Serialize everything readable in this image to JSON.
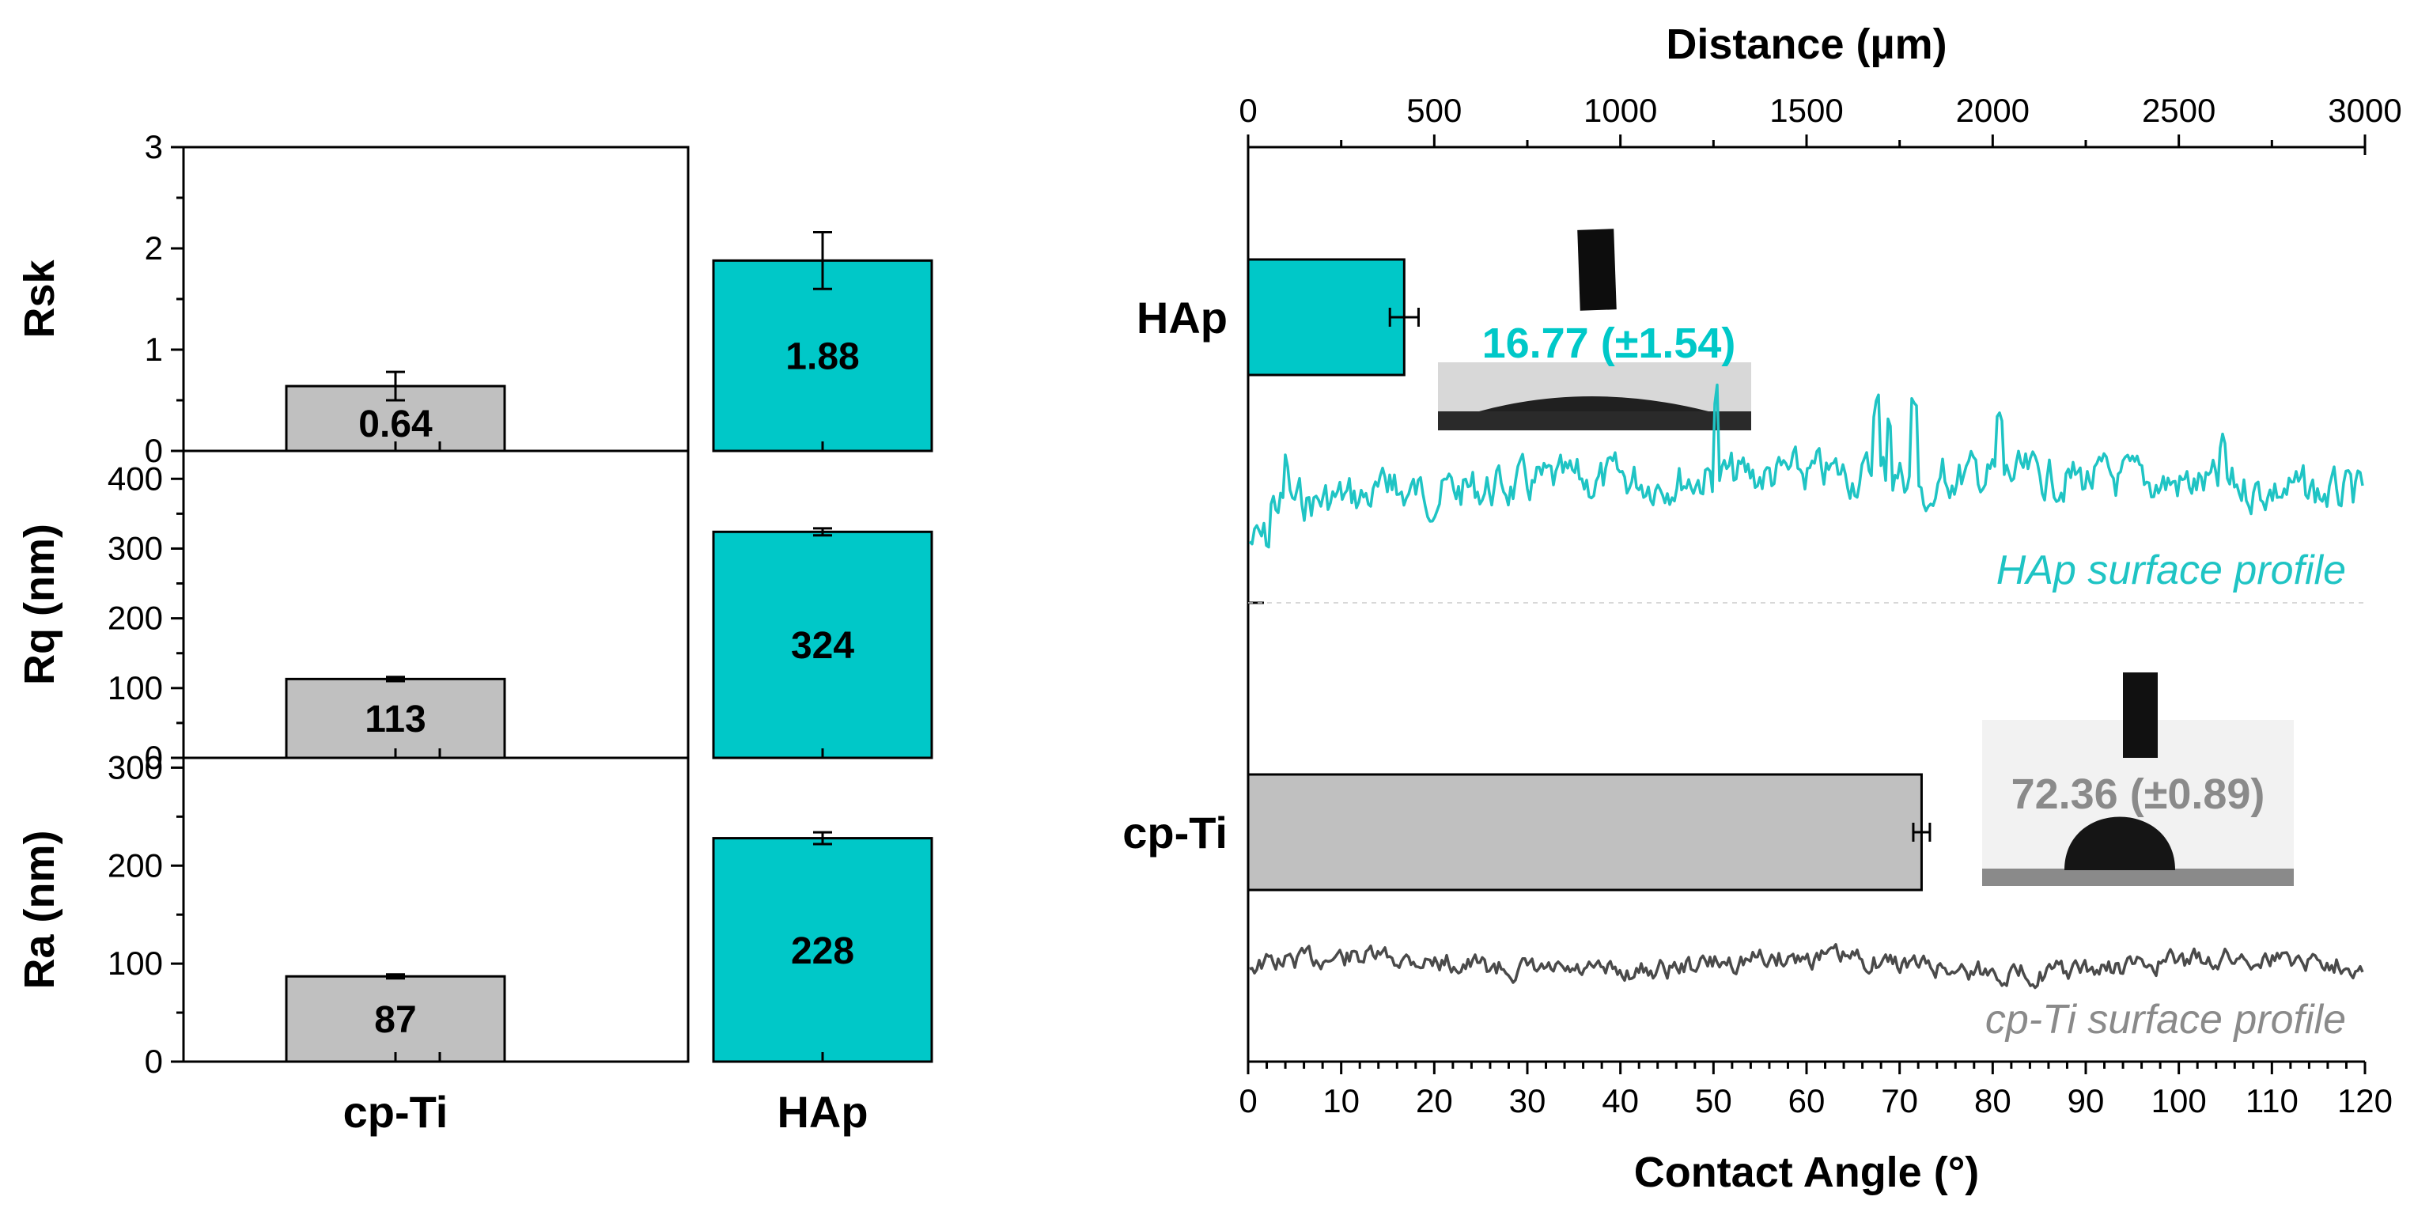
{
  "chart_data": [
    {
      "type": "bar",
      "categories": [
        "cp-Ti",
        "HAp"
      ],
      "colors": {
        "cp-Ti": "#c0c0c0",
        "HAp": "#00c8c8"
      },
      "panels": [
        {
          "id": "rsk",
          "ylabel": "Rsk",
          "ylim": [
            0,
            3
          ],
          "ticks": [
            "0",
            "1",
            "2",
            "3"
          ],
          "tick_values": [
            0,
            1,
            2,
            3
          ],
          "values": [
            0.64,
            1.88
          ],
          "errors": [
            0.14,
            0.28
          ],
          "value_labels": [
            "0.64",
            "1.88"
          ]
        },
        {
          "id": "rq",
          "ylabel": "Rq (nm)",
          "ylim": [
            0,
            440
          ],
          "ticks": [
            "0",
            "100",
            "200",
            "300",
            "400"
          ],
          "tick_values": [
            0,
            100,
            200,
            300,
            400
          ],
          "values": [
            113,
            324
          ],
          "errors": [
            3,
            5
          ],
          "value_labels": [
            "113",
            "324"
          ]
        },
        {
          "id": "ra",
          "ylabel": "Ra (nm)",
          "ylim": [
            0,
            310
          ],
          "ticks": [
            "0",
            "100",
            "200",
            "300"
          ],
          "tick_values": [
            0,
            100,
            200,
            300
          ],
          "values": [
            87,
            228
          ],
          "errors": [
            2,
            6
          ],
          "value_labels": [
            "87",
            "228"
          ]
        }
      ]
    },
    {
      "type": "bar",
      "orientation": "horizontal",
      "categories": [
        "HAp",
        "cp-Ti"
      ],
      "values": [
        16.77,
        72.36
      ],
      "errors": [
        1.54,
        0.89
      ],
      "value_labels": [
        "16.77 (±1.54)",
        "72.36 (±0.89)"
      ],
      "colors": {
        "HAp": "#00c8c8",
        "cp-Ti": "#c0c0c0"
      },
      "xlabel": "Contact Angle (°)",
      "xlim": [
        0,
        120
      ],
      "xticks": [
        "0",
        "10",
        "20",
        "30",
        "40",
        "50",
        "60",
        "70",
        "80",
        "90",
        "100",
        "110",
        "120"
      ],
      "xtick_values": [
        0,
        10,
        20,
        30,
        40,
        50,
        60,
        70,
        80,
        90,
        100,
        110,
        120
      ],
      "top_axis": {
        "label": "Distance (µm)",
        "range": [
          0,
          3000
        ],
        "ticks": [
          "0",
          "500",
          "1000",
          "1500",
          "2000",
          "2500",
          "3000"
        ],
        "tick_values": [
          0,
          500,
          1000,
          1500,
          2000,
          2500,
          3000
        ]
      },
      "profiles": [
        {
          "name": "HAp surface profile",
          "color": "#1fc4c4"
        },
        {
          "name": "cp-Ti surface profile",
          "color": "#4a4a4a"
        }
      ]
    }
  ]
}
